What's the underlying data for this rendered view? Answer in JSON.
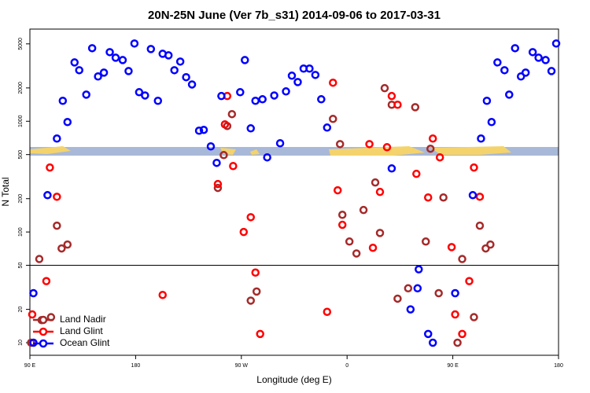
{
  "chart_data": {
    "type": "scatter",
    "title": "20N-25N June (Ver 7b_s31)   2014-09-06 to 2017-03-31",
    "x_label": "Longitude (deg E)",
    "y_label": "N Total",
    "xlim": [
      90,
      540
    ],
    "xticks": [
      {
        "value": 90,
        "label": "90 E"
      },
      180,
      {
        "value": 270,
        "label": "90 W"
      },
      {
        "value": 360,
        "label": "0"
      },
      {
        "value": 450,
        "label": "90 E"
      },
      {
        "value": 540,
        "label": "180"
      }
    ],
    "ylim": [
      7.7,
      6800
    ],
    "yticks": [
      10,
      20,
      50,
      100,
      200,
      500,
      1000,
      2000,
      5000
    ],
    "log_y": true,
    "hline": 50,
    "legend": "bottomleft",
    "series": [
      {
        "name": "Land Nadir",
        "color": "#a52a2a",
        "x": [
          91,
          98,
          100,
          108,
          113,
          117,
          122,
          250,
          255,
          258,
          262,
          278,
          283,
          348,
          354,
          356,
          362,
          368,
          374,
          384,
          388,
          392,
          398,
          403,
          412,
          418,
          427,
          431,
          438,
          442,
          454,
          458,
          468,
          473,
          478,
          482
        ],
        "values": [
          10,
          57,
          16,
          17,
          114,
          71,
          77,
          250,
          495,
          906,
          1160,
          24,
          29,
          1050,
          622,
          143,
          82,
          64,
          158,
          280,
          98,
          1990,
          1410,
          25,
          31,
          1340,
          82,
          565,
          28,
          205,
          10,
          57,
          17,
          114,
          71,
          77
        ]
      },
      {
        "name": "Land Glint",
        "color": "#ff0000",
        "x": [
          92,
          107,
          113,
          104,
          203,
          250,
          258,
          256,
          263,
          272,
          278,
          282,
          286,
          343,
          348,
          352,
          356,
          379,
          382,
          388,
          394,
          398,
          403,
          419,
          429,
          433,
          439,
          449,
          452,
          458,
          464,
          468,
          473
        ],
        "values": [
          18,
          382,
          208,
          36,
          27,
          271,
          1690,
          937,
          394,
          100,
          136,
          43,
          12,
          19,
          2230,
          238,
          116,
          622,
          72,
          230,
          583,
          1690,
          1410,
          335,
          205,
          698,
          472,
          73,
          18,
          12,
          36,
          382,
          208
        ]
      },
      {
        "name": "Ocean Glint",
        "color": "#0000ff",
        "x": [
          93,
          93,
          105,
          113,
          118,
          122,
          128,
          132,
          138,
          143,
          148,
          153,
          158,
          163,
          169,
          174,
          179,
          183,
          188,
          193,
          199,
          203,
          208,
          213,
          218,
          223,
          228,
          234,
          238,
          244,
          249,
          253,
          269,
          273,
          278,
          282,
          288,
          292,
          298,
          303,
          308,
          313,
          318,
          323,
          328,
          333,
          338,
          343,
          398,
          414,
          421,
          420,
          429,
          433,
          452,
          467,
          474,
          479,
          483,
          488,
          494,
          498,
          503,
          508,
          512,
          518,
          523,
          529,
          534,
          538
        ],
        "values": [
          28,
          10,
          215,
          698,
          1530,
          984,
          3400,
          2890,
          1740,
          4570,
          2540,
          2750,
          4210,
          3750,
          3570,
          2840,
          5040,
          1830,
          1710,
          4490,
          1530,
          4070,
          3940,
          2890,
          3460,
          2500,
          2150,
          822,
          836,
          593,
          421,
          1690,
          1830,
          3570,
          863,
          1530,
          1580,
          472,
          1710,
          633,
          1860,
          2580,
          2260,
          2990,
          2990,
          2620,
          1580,
          877,
          375,
          20,
          46,
          31,
          12,
          10,
          28,
          215,
          698,
          1530,
          984,
          3400,
          2890,
          1740,
          4570,
          2540,
          2750,
          4210,
          3750,
          3570,
          2840,
          5040
        ]
      }
    ]
  }
}
